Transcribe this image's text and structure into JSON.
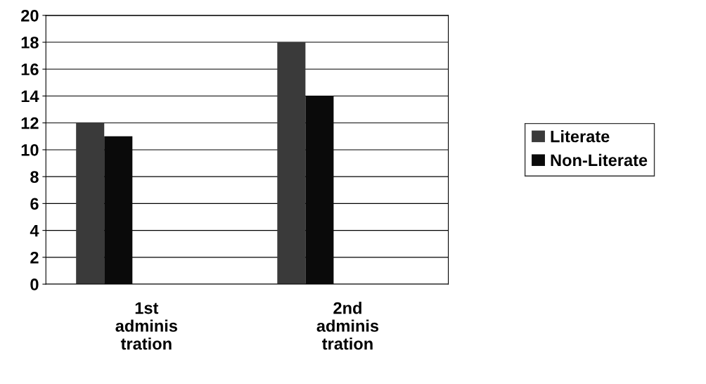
{
  "chart_data": {
    "type": "bar",
    "categories": [
      "1st\nadminis\ntration",
      "2nd\nadminis\ntration"
    ],
    "series": [
      {
        "name": "Literate",
        "color": "#3a3a3a",
        "values": [
          12,
          18
        ]
      },
      {
        "name": "Non-Literate",
        "color": "#0a0a0a",
        "values": [
          11,
          14
        ]
      }
    ],
    "ylim": [
      0,
      20
    ],
    "yticks": [
      0,
      2,
      4,
      6,
      8,
      10,
      12,
      14,
      16,
      18,
      20
    ],
    "grid": "y",
    "legend": "right"
  }
}
